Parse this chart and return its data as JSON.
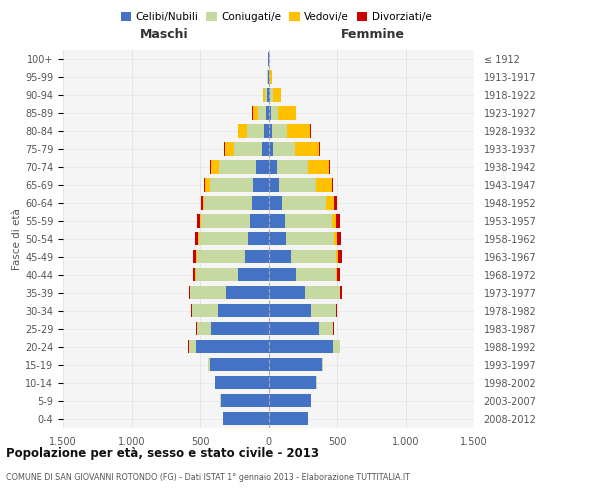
{
  "age_groups": [
    "0-4",
    "5-9",
    "10-14",
    "15-19",
    "20-24",
    "25-29",
    "30-34",
    "35-39",
    "40-44",
    "45-49",
    "50-54",
    "55-59",
    "60-64",
    "65-69",
    "70-74",
    "75-79",
    "80-84",
    "85-89",
    "90-94",
    "95-99",
    "100+"
  ],
  "birth_years": [
    "2008-2012",
    "2003-2007",
    "1998-2002",
    "1993-1997",
    "1988-1992",
    "1983-1987",
    "1978-1982",
    "1973-1977",
    "1968-1972",
    "1963-1967",
    "1958-1962",
    "1953-1957",
    "1948-1952",
    "1943-1947",
    "1938-1942",
    "1933-1937",
    "1928-1932",
    "1923-1927",
    "1918-1922",
    "1913-1917",
    "≤ 1912"
  ],
  "maschi_celibi": [
    330,
    350,
    390,
    430,
    530,
    420,
    370,
    310,
    220,
    175,
    150,
    135,
    120,
    110,
    90,
    50,
    30,
    20,
    8,
    4,
    2
  ],
  "maschi_coniugati": [
    0,
    1,
    3,
    10,
    50,
    100,
    190,
    260,
    310,
    350,
    360,
    360,
    350,
    320,
    270,
    200,
    130,
    60,
    20,
    5,
    1
  ],
  "maschi_vedovi": [
    0,
    0,
    0,
    0,
    1,
    1,
    1,
    2,
    3,
    5,
    5,
    5,
    10,
    30,
    60,
    70,
    60,
    35,
    15,
    2,
    0
  ],
  "maschi_divorziati": [
    0,
    0,
    0,
    0,
    3,
    5,
    8,
    10,
    15,
    20,
    25,
    25,
    15,
    8,
    5,
    5,
    4,
    2,
    0,
    0,
    0
  ],
  "femmine_nubili": [
    290,
    310,
    350,
    390,
    470,
    370,
    310,
    270,
    200,
    165,
    130,
    120,
    100,
    80,
    60,
    35,
    25,
    15,
    10,
    4,
    2
  ],
  "femmine_coniugate": [
    0,
    0,
    2,
    10,
    50,
    100,
    180,
    250,
    290,
    330,
    350,
    340,
    320,
    270,
    230,
    160,
    110,
    55,
    20,
    5,
    1
  ],
  "femmine_vedove": [
    0,
    0,
    0,
    0,
    1,
    2,
    3,
    5,
    10,
    15,
    20,
    35,
    60,
    110,
    150,
    170,
    170,
    130,
    60,
    15,
    2
  ],
  "femmine_divorziate": [
    0,
    0,
    0,
    0,
    3,
    5,
    10,
    15,
    25,
    30,
    30,
    25,
    20,
    10,
    8,
    8,
    5,
    2,
    0,
    0,
    0
  ],
  "color_celibi": "#4472c4",
  "color_coniugati": "#c5d9a0",
  "color_vedovi": "#ffc000",
  "color_divorziati": "#cc0000",
  "xlim": 1500,
  "title": "Popolazione per età, sesso e stato civile - 2013",
  "subtitle": "COMUNE DI SAN GIOVANNI ROTONDO (FG) - Dati ISTAT 1° gennaio 2013 - Elaborazione TUTTITALIA.IT",
  "ylabel_left": "Fasce di età",
  "label_maschi": "Maschi",
  "label_femmine": "Femmine"
}
